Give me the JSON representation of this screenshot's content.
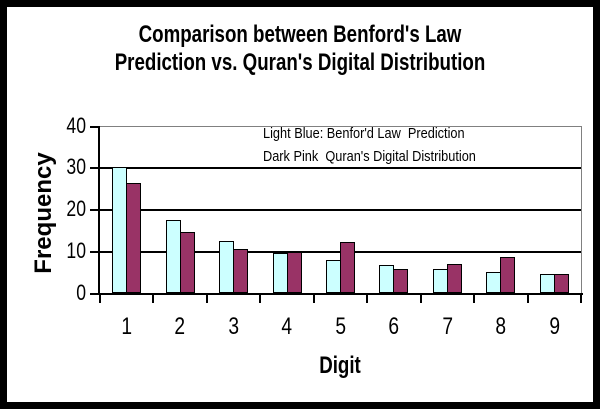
{
  "title": {
    "line1": "Comparison between Benford's Law",
    "line2": "Prediction vs. Quran's Digital Distribution"
  },
  "legend": {
    "line1": "Light Blue: Benfor'd Law  Prediction",
    "line2": "Dark Pink  Quran's Digital Distribution"
  },
  "chart_data": {
    "type": "bar",
    "title": "Comparison between Benford's Law Prediction vs. Quran's Digital Distribution",
    "xlabel": "Digit",
    "ylabel": "Frequency",
    "ylim": [
      0,
      40
    ],
    "yticks": [
      40,
      30,
      20,
      10,
      0
    ],
    "grid": true,
    "legend_position": "inside-top-center",
    "categories": [
      "1",
      "2",
      "3",
      "4",
      "5",
      "6",
      "7",
      "8",
      "9"
    ],
    "series": [
      {
        "name": "Benford's Law Prediction",
        "color": "#CCFFFF",
        "values": [
          30.1,
          17.6,
          12.5,
          9.7,
          7.9,
          6.7,
          5.8,
          5.1,
          4.6
        ]
      },
      {
        "name": "Quran's Digital Distribution",
        "color": "#993366",
        "values": [
          26.3,
          14.5,
          10.6,
          9.9,
          12.3,
          5.8,
          7.0,
          8.6,
          4.6
        ]
      }
    ],
    "colors": {
      "axis": "#000000",
      "plot_border": "#808080",
      "bar_outline": "#000000",
      "background": "#FFFFFF",
      "frame_border": "#000000"
    }
  }
}
